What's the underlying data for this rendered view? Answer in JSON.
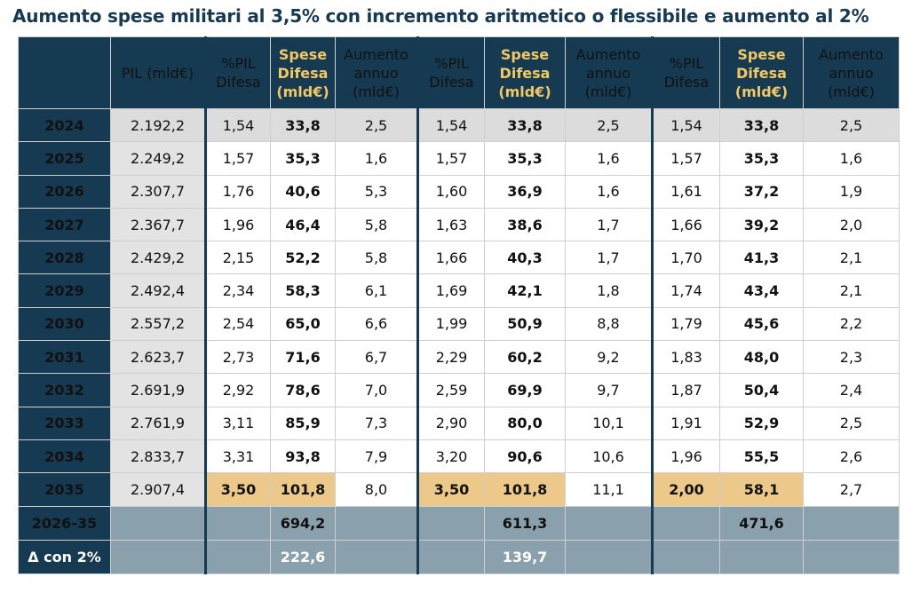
{
  "title": "Aumento spese militari al 3,5% con incremento aritmetico o flessibile e aumento al 2%",
  "headers": {
    "pil": "PIL (mld€)",
    "pct": "%PIL Difesa",
    "spese": "Spese Difesa (mld€)",
    "aumento": "Aumento annuo (mld€)"
  },
  "rows": [
    {
      "year": "2024",
      "pil": "2.192,2",
      "a": [
        "1,54",
        "33,8",
        "2,5"
      ],
      "b": [
        "1,54",
        "33,8",
        "2,5"
      ],
      "c": [
        "1,54",
        "33,8",
        "2,5"
      ]
    },
    {
      "year": "2025",
      "pil": "2.249,2",
      "a": [
        "1,57",
        "35,3",
        "1,6"
      ],
      "b": [
        "1,57",
        "35,3",
        "1,6"
      ],
      "c": [
        "1,57",
        "35,3",
        "1,6"
      ]
    },
    {
      "year": "2026",
      "pil": "2.307,7",
      "a": [
        "1,76",
        "40,6",
        "5,3"
      ],
      "b": [
        "1,60",
        "36,9",
        "1,6"
      ],
      "c": [
        "1,61",
        "37,2",
        "1,9"
      ]
    },
    {
      "year": "2027",
      "pil": "2.367,7",
      "a": [
        "1,96",
        "46,4",
        "5,8"
      ],
      "b": [
        "1,63",
        "38,6",
        "1,7"
      ],
      "c": [
        "1,66",
        "39,2",
        "2,0"
      ]
    },
    {
      "year": "2028",
      "pil": "2.429,2",
      "a": [
        "2,15",
        "52,2",
        "5,8"
      ],
      "b": [
        "1,66",
        "40,3",
        "1,7"
      ],
      "c": [
        "1,70",
        "41,3",
        "2,1"
      ]
    },
    {
      "year": "2029",
      "pil": "2.492,4",
      "a": [
        "2,34",
        "58,3",
        "6,1"
      ],
      "b": [
        "1,69",
        "42,1",
        "1,8"
      ],
      "c": [
        "1,74",
        "43,4",
        "2,1"
      ]
    },
    {
      "year": "2030",
      "pil": "2.557,2",
      "a": [
        "2,54",
        "65,0",
        "6,6"
      ],
      "b": [
        "1,99",
        "50,9",
        "8,8"
      ],
      "c": [
        "1,79",
        "45,6",
        "2,2"
      ]
    },
    {
      "year": "2031",
      "pil": "2.623,7",
      "a": [
        "2,73",
        "71,6",
        "6,7"
      ],
      "b": [
        "2,29",
        "60,2",
        "9,2"
      ],
      "c": [
        "1,83",
        "48,0",
        "2,3"
      ]
    },
    {
      "year": "2032",
      "pil": "2.691,9",
      "a": [
        "2,92",
        "78,6",
        "7,0"
      ],
      "b": [
        "2,59",
        "69,9",
        "9,7"
      ],
      "c": [
        "1,87",
        "50,4",
        "2,4"
      ]
    },
    {
      "year": "2033",
      "pil": "2.761,9",
      "a": [
        "3,11",
        "85,9",
        "7,3"
      ],
      "b": [
        "2,90",
        "80,0",
        "10,1"
      ],
      "c": [
        "1,91",
        "52,9",
        "2,5"
      ]
    },
    {
      "year": "2034",
      "pil": "2.833,7",
      "a": [
        "3,31",
        "93,8",
        "7,9"
      ],
      "b": [
        "3,20",
        "90,6",
        "10,6"
      ],
      "c": [
        "1,96",
        "55,5",
        "2,6"
      ]
    },
    {
      "year": "2035",
      "pil": "2.907,4",
      "a": [
        "3,50",
        "101,8",
        "8,0"
      ],
      "b": [
        "3,50",
        "101,8",
        "11,1"
      ],
      "c": [
        "2,00",
        "58,1",
        "2,7"
      ]
    }
  ],
  "footer": {
    "total_label": "2026-35",
    "totals": [
      "694,2",
      "611,3",
      "471,6"
    ],
    "diff_label": "Δ con 2%",
    "diffs": [
      "222,6",
      "139,7",
      ""
    ]
  }
}
